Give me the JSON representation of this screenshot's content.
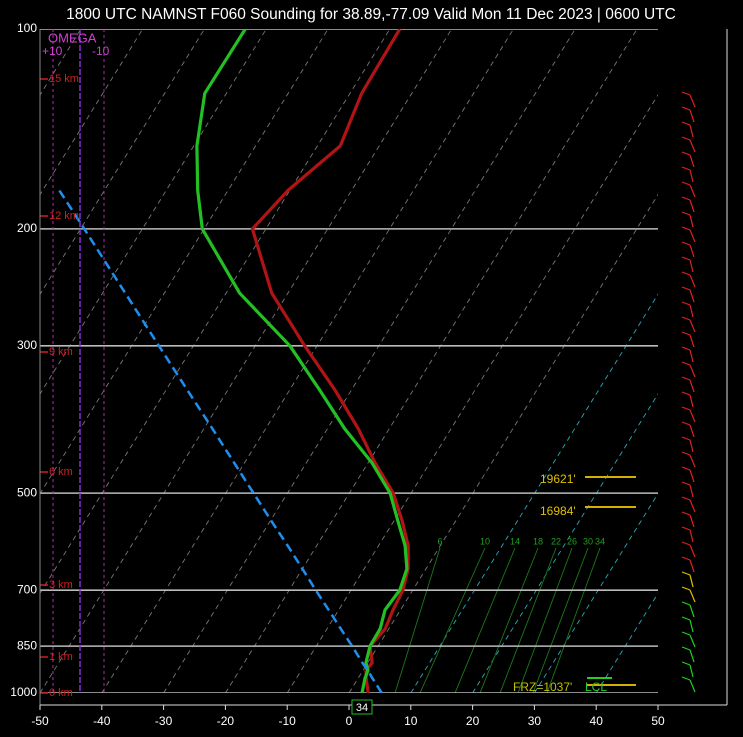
{
  "chart_data": {
    "type": "skewt",
    "title": "1800 UTC NAMNST F060 Sounding for 38.89,-77.09 Valid  Mon 11 Dec 2023 | 0600 UTC",
    "pressure": [
      1000,
      950,
      925,
      900,
      850,
      800,
      750,
      700,
      650,
      600,
      550,
      500,
      450,
      400,
      350,
      300,
      250,
      200,
      175,
      150,
      125,
      100
    ],
    "series": [
      {
        "name": "Temperature",
        "color": "#b01414",
        "values": [
          3.1,
          1.3,
          0.5,
          0.7,
          -1.3,
          -0.6,
          -1.2,
          -1.6,
          -2.9,
          -5.2,
          -8.7,
          -12.9,
          -18.9,
          -25.0,
          -32.6,
          -42.0,
          -52.6,
          -62.2,
          -60.3,
          -56.3,
          -58.1,
          -58.4
        ]
      },
      {
        "name": "Dewpoint",
        "color": "#22c022",
        "values": [
          2.1,
          1.1,
          0.8,
          -0.3,
          -1.3,
          -1.4,
          -2.5,
          -2.1,
          -3.1,
          -5.7,
          -9.4,
          -13.4,
          -19.4,
          -27.2,
          -35.1,
          -44.4,
          -57.8,
          -70.3,
          -74.9,
          -79.5,
          -83.5,
          -83.4
        ]
      },
      {
        "name": "Parcel",
        "color": "#1e8ff0",
        "values": [
          5.3,
          2.3,
          0.8,
          -0.9,
          -4.2,
          -7.8,
          -11.6,
          -15.7,
          -20.0,
          -24.7,
          -29.9,
          -35.5,
          -41.7,
          -48.6,
          -56.5,
          -65.6,
          -76.3,
          -89.4,
          -97.3,
          null,
          null,
          null
        ]
      }
    ],
    "xlim": [
      -50,
      50
    ],
    "xticks": [
      -50,
      -40,
      -30,
      -20,
      -10,
      0,
      10,
      20,
      30,
      40,
      50
    ],
    "ylim": [
      1000,
      100
    ],
    "ylog": true,
    "yticks": [
      100,
      200,
      300,
      500,
      700,
      850,
      1000
    ],
    "grid": true,
    "height_labels": [
      "15 km",
      "12 km",
      "9 km",
      "6 km",
      "3 km",
      "1 km",
      "0 km"
    ],
    "omega_title": "OMEGA",
    "omega_ticks": [
      "+10",
      "-10"
    ],
    "mixing_ratio_labels": [
      "6",
      "10",
      "14",
      "18",
      "22",
      "26",
      "30",
      "34"
    ],
    "annotations": [
      "19621'",
      "16984'",
      "FRZ=1037'",
      "LCL",
      "34"
    ]
  }
}
